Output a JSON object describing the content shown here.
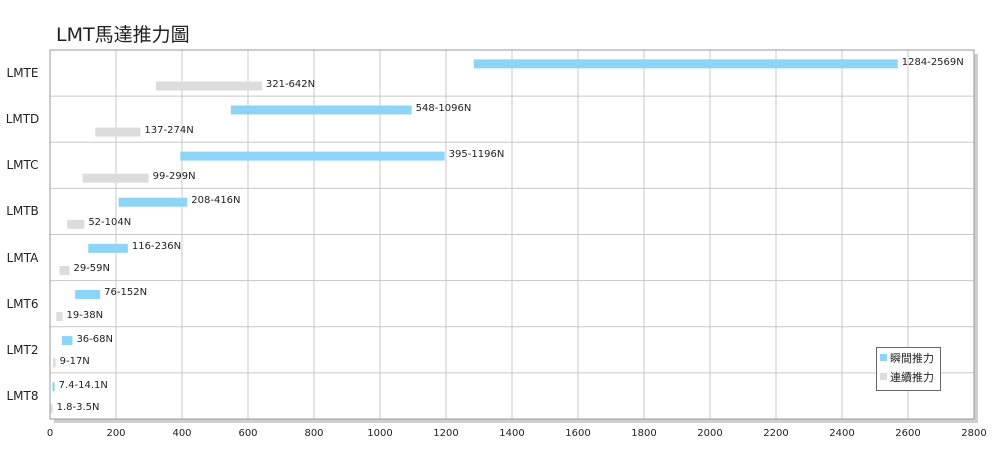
{
  "chart_data": {
    "type": "bar",
    "title": "LMT馬達推力圖",
    "orientation": "horizontal",
    "categories": [
      "LMTE",
      "LMTD",
      "LMTC",
      "LMTB",
      "LMTA",
      "LMT6",
      "LMT2",
      "LMT8"
    ],
    "xlim": [
      0,
      2800
    ],
    "xticks": [
      0,
      200,
      400,
      600,
      800,
      1000,
      1200,
      1400,
      1600,
      1800,
      2000,
      2200,
      2400,
      2600,
      2800
    ],
    "grid": true,
    "legend_position": "bottom-right",
    "series": [
      {
        "name": "瞬間推力",
        "color": "#8dd4f7",
        "ranges": [
          [
            1284,
            2569
          ],
          [
            548,
            1096
          ],
          [
            395,
            1196
          ],
          [
            208,
            416
          ],
          [
            116,
            236
          ],
          [
            76,
            152
          ],
          [
            36,
            68
          ],
          [
            7.4,
            14.1
          ]
        ],
        "labels": [
          "1284-2569N",
          "548-1096N",
          "395-1196N",
          "208-416N",
          "116-236N",
          "76-152N",
          "36-68N",
          "7.4-14.1N"
        ]
      },
      {
        "name": "連續推力",
        "color": "#dcdcdc",
        "ranges": [
          [
            321,
            642
          ],
          [
            137,
            274
          ],
          [
            99,
            299
          ],
          [
            52,
            104
          ],
          [
            29,
            59
          ],
          [
            19,
            38
          ],
          [
            9,
            17
          ],
          [
            1.8,
            3.5
          ]
        ],
        "labels": [
          "321-642N",
          "137-274N",
          "99-299N",
          "52-104N",
          "29-59N",
          "19-38N",
          "9-17N",
          "1.8-3.5N"
        ]
      }
    ]
  }
}
